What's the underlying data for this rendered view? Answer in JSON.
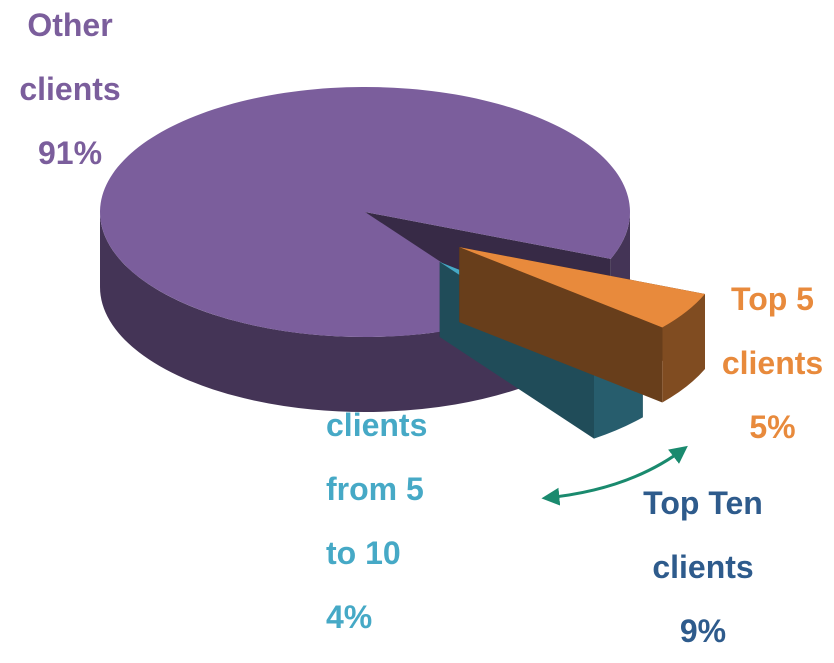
{
  "chart_data": {
    "type": "pie",
    "categories": [
      "Top 5 clients",
      "clients from 5 to 10",
      "Other clients"
    ],
    "values": [
      5,
      4,
      91
    ],
    "value_labels": [
      "5%",
      "4%",
      "91%"
    ],
    "colors": [
      "#e88a3c",
      "#46a9c6",
      "#7b5e9c"
    ],
    "annotations": [
      {
        "text": "Top Ten clients",
        "label": "9%"
      }
    ]
  }
}
